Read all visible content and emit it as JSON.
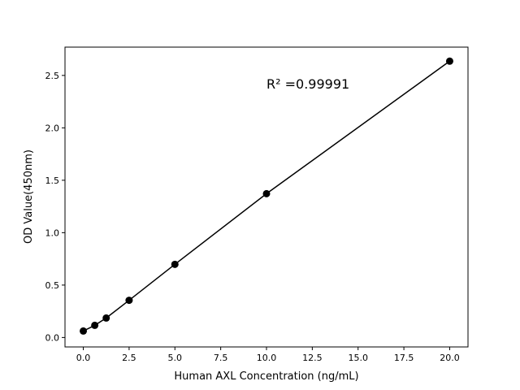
{
  "chart_data": {
    "type": "line",
    "title": "",
    "xlabel": "Human AXL Concentration (ng/mL)",
    "ylabel": "OD Value(450nm)",
    "xlim": [
      -1.0,
      21.0
    ],
    "ylim": [
      -0.09,
      2.77
    ],
    "xticks": [
      "0.0",
      "2.5",
      "5.0",
      "7.5",
      "10.0",
      "12.5",
      "15.0",
      "17.5",
      "20.0"
    ],
    "yticks": [
      "0.0",
      "0.5",
      "1.0",
      "1.5",
      "2.0",
      "2.5"
    ],
    "grid": false,
    "annotation": "R² =0.99991",
    "series": [
      {
        "x": [
          0,
          0.625,
          1.25,
          2.5,
          5,
          10,
          20
        ],
        "y": [
          0.062,
          0.116,
          0.186,
          0.355,
          0.698,
          1.372,
          2.636
        ],
        "color": "#000000",
        "marker": "circle"
      }
    ]
  }
}
